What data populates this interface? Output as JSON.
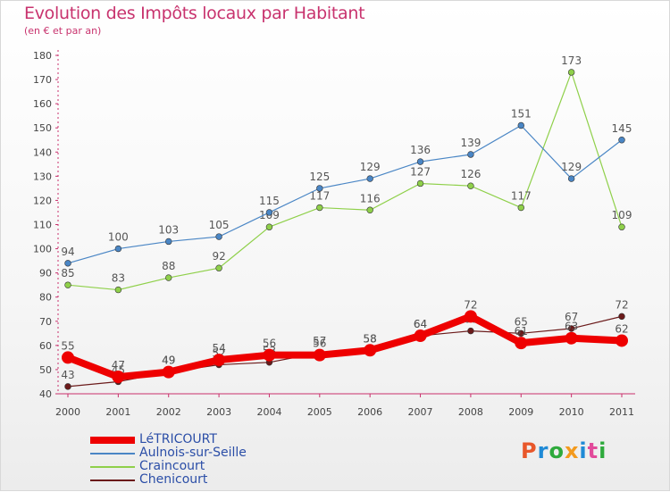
{
  "title": "Evolution des Impôts locaux par Habitant",
  "subtitle": "(en € et par an)",
  "logo": {
    "letters": [
      "P",
      "r",
      "o",
      "x",
      "i",
      "t",
      "i"
    ],
    "colors": [
      "#e8572a",
      "#1f8ad6",
      "#2eaa3c",
      "#f39a1d",
      "#1f8ad6",
      "#e24a9b",
      "#2eaa3c"
    ]
  },
  "chart_data": {
    "type": "line",
    "title": "Evolution des Impôts locaux par Habitant",
    "subtitle": "(en € et par an)",
    "x": [
      "2000",
      "2001",
      "2002",
      "2003",
      "2004",
      "2005",
      "2006",
      "2007",
      "2008",
      "2009",
      "2010",
      "2011"
    ],
    "ylim": [
      40,
      180
    ],
    "yticks": [
      "40",
      "50",
      "60",
      "70",
      "80",
      "90",
      "100",
      "110",
      "120",
      "130",
      "140",
      "150",
      "160",
      "170",
      "180"
    ],
    "grid": false,
    "legend_position": "bottom-left",
    "series": [
      {
        "name": "Chenicourt",
        "color": "#6b1a1a",
        "values": [
          43,
          45,
          49,
          52,
          53,
          57,
          58,
          64,
          66,
          65,
          67,
          72
        ],
        "labels": [
          "43",
          "45",
          "49",
          "52",
          "53",
          "57",
          "58",
          "64",
          "66",
          "65",
          "67",
          "72"
        ],
        "bold": false
      },
      {
        "name": "Craincourt",
        "color": "#8fd04a",
        "values": [
          85,
          83,
          88,
          92,
          109,
          117,
          116,
          127,
          126,
          117,
          173,
          109
        ],
        "labels": [
          "85",
          "83",
          "88",
          "92",
          "109",
          "117",
          "116",
          "127",
          "126",
          "117",
          "173",
          "109"
        ],
        "bold": false
      },
      {
        "name": "Aulnois-sur-Seille",
        "color": "#4a86c5",
        "values": [
          94,
          100,
          103,
          105,
          115,
          125,
          129,
          136,
          139,
          151,
          129,
          145
        ],
        "labels": [
          "94",
          "100",
          "103",
          "105",
          "115",
          "125",
          "129",
          "136",
          "139",
          "151",
          "129",
          "145"
        ],
        "bold": false
      },
      {
        "name": "LéTRICOURT",
        "color": "#ee0000",
        "values": [
          55,
          47,
          49,
          54,
          56,
          56,
          58,
          64,
          72,
          61,
          63,
          62
        ],
        "labels": [
          "55",
          "47",
          "49",
          "54",
          "56",
          "56",
          "58",
          "64",
          "72",
          "61",
          "63",
          "62"
        ],
        "bold": true
      }
    ],
    "legend": [
      "LéTRICOURT",
      "Aulnois-sur-Seille",
      "Craincourt",
      "Chenicourt"
    ]
  }
}
